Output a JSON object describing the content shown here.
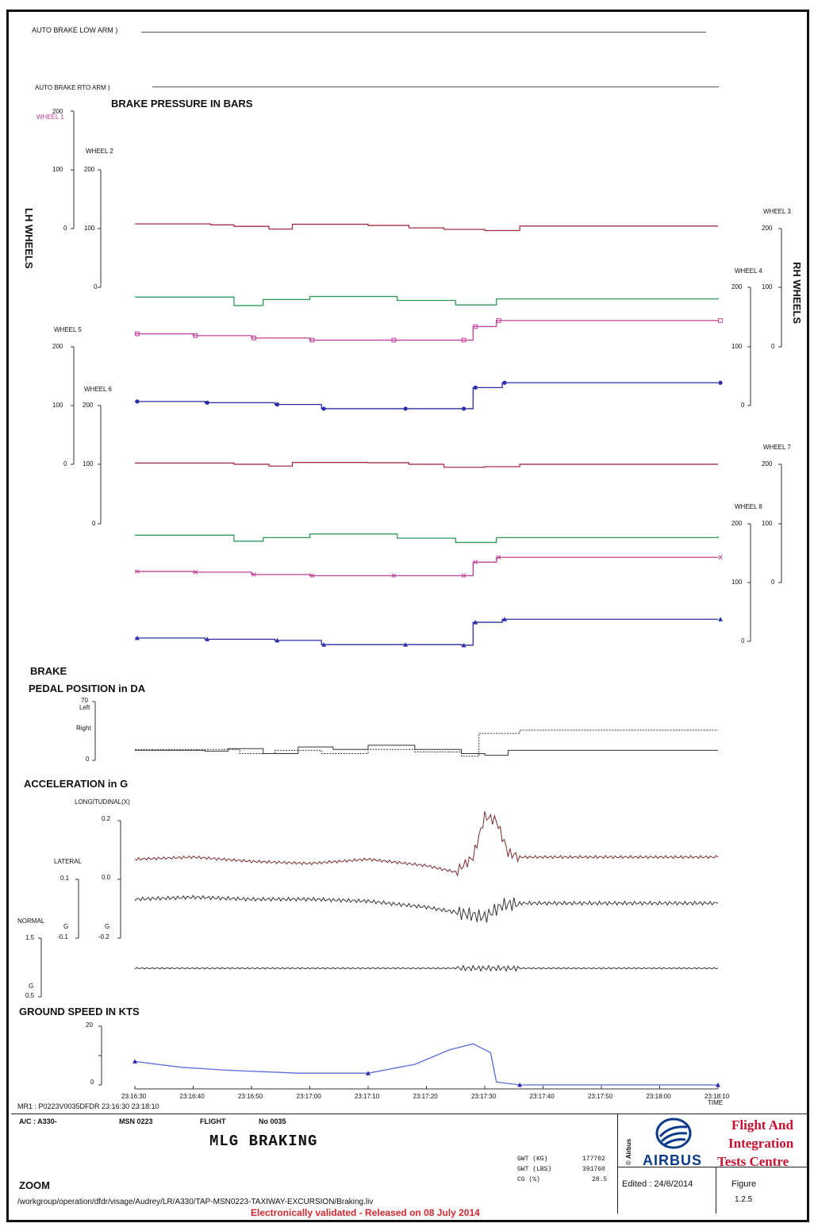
{
  "header": {
    "auto_brake_low": "AUTO BRAKE LOW ARM )",
    "auto_brake_rto": "AUTO BRAKE RTO ARM )"
  },
  "sections": {
    "brake_pressure": "BRAKE PRESSURE IN BARS",
    "lh_wheels": "LH WHEELS",
    "rh_wheels": "RH WHEELS",
    "pedal_1": "BRAKE",
    "pedal_2": "PEDAL POSITION in DA",
    "acceleration": "ACCELERATION in G",
    "ground_speed": "GROUND SPEED IN KTS"
  },
  "labels": {
    "wheel1": "WHEEL 1",
    "wheel2": "WHEEL 2",
    "wheel3": "WHEEL 3",
    "wheel4": "WHEEL 4",
    "wheel5": "WHEEL 5",
    "wheel6": "WHEEL 6",
    "wheel7": "WHEEL 7",
    "wheel8": "WHEEL 8",
    "left": "Left",
    "right": "Right",
    "longitudinal": "LONGITUDINAL(X)",
    "lateral": "LATERAL",
    "normal": "NORMAL",
    "g": "G",
    "time": "TIME"
  },
  "ticks": {
    "t200": "200",
    "t100": "100",
    "t0": "0",
    "t70": "70",
    "a02": "0.2",
    "a00": "0.0",
    "am02": "-0.2",
    "l01": "0.1",
    "lm01": "-0.1",
    "n15": "1.5",
    "n05": "0.5",
    "s20": "20",
    "s0": "0"
  },
  "colors": {
    "wheel_a": "#a0304a",
    "wheel_b": "#2f9a5a",
    "wheel_c": "#c0409a",
    "wheel_d": "#2c2ca8",
    "accel_long": "#7a2a2a",
    "trace": "#333333",
    "speed": "#5a6adc",
    "airbus_blue": "#0b3a8a",
    "fitc_red": "#c8102e",
    "validated_red": "#d4282e"
  },
  "chart_data": {
    "type": "line",
    "x_ticks": [
      "23:16:30",
      "23:16:40",
      "23:16:50",
      "23:17:00",
      "23:17:10",
      "23:17:20",
      "23:17:30",
      "23:17:40",
      "23:17:50",
      "23:18:00",
      "23:18:10"
    ],
    "x_range": [
      "23:16:30",
      "23:18:10"
    ],
    "brake_pressure_bars": {
      "ylim": [
        0,
        200
      ],
      "series": [
        {
          "name": "WHEEL 1",
          "values": [
            [
              0,
              68
            ],
            [
              13,
              65
            ],
            [
              17,
              60
            ],
            [
              23,
              51
            ],
            [
              27,
              67
            ],
            [
              40,
              63
            ],
            [
              47,
              55
            ],
            [
              53,
              50
            ],
            [
              60,
              46
            ],
            [
              66,
              61
            ],
            [
              100,
              61
            ]
          ]
        },
        {
          "name": "WHEEL 2",
          "values": [
            [
              0,
              36
            ],
            [
              17,
              8
            ],
            [
              22,
              28
            ],
            [
              30,
              38
            ],
            [
              45,
              25
            ],
            [
              55,
              10
            ],
            [
              62,
              30
            ],
            [
              100,
              33
            ]
          ]
        },
        {
          "name": "WHEEL 3",
          "values": [
            [
              0,
              88
            ],
            [
              10,
              82
            ],
            [
              20,
              74
            ],
            [
              30,
              67
            ],
            [
              44,
              67
            ],
            [
              56,
              67
            ],
            [
              58,
              112
            ],
            [
              62,
              132
            ],
            [
              100,
              132
            ]
          ]
        },
        {
          "name": "WHEEL 4",
          "values": [
            [
              0,
              32
            ],
            [
              12,
              28
            ],
            [
              24,
              22
            ],
            [
              32,
              8
            ],
            [
              46,
              8
            ],
            [
              56,
              8
            ],
            [
              58,
              78
            ],
            [
              63,
              94
            ],
            [
              100,
              94
            ]
          ]
        },
        {
          "name": "WHEEL 5",
          "values": [
            [
              0,
              62
            ],
            [
              13,
              62
            ],
            [
              17,
              58
            ],
            [
              23,
              52
            ],
            [
              27,
              64
            ],
            [
              40,
              63
            ],
            [
              47,
              58
            ],
            [
              53,
              48
            ],
            [
              60,
              50
            ],
            [
              66,
              58
            ],
            [
              100,
              58
            ]
          ]
        },
        {
          "name": "WHEEL 6",
          "values": [
            [
              0,
              36
            ],
            [
              17,
              16
            ],
            [
              22,
              28
            ],
            [
              30,
              40
            ],
            [
              45,
              26
            ],
            [
              55,
              12
            ],
            [
              62,
              28
            ],
            [
              100,
              33
            ]
          ]
        },
        {
          "name": "WHEEL 7",
          "values": [
            [
              0,
              84
            ],
            [
              10,
              82
            ],
            [
              20,
              74
            ],
            [
              30,
              70
            ],
            [
              44,
              70
            ],
            [
              56,
              70
            ],
            [
              58,
              115
            ],
            [
              62,
              131
            ],
            [
              100,
              131
            ]
          ]
        },
        {
          "name": "WHEEL 8",
          "values": [
            [
              0,
              32
            ],
            [
              12,
              28
            ],
            [
              24,
              24
            ],
            [
              32,
              10
            ],
            [
              46,
              10
            ],
            [
              56,
              8
            ],
            [
              58,
              84
            ],
            [
              63,
              94
            ],
            [
              100,
              94
            ]
          ]
        }
      ]
    },
    "pedal_position_da": {
      "ylim": [
        0,
        70
      ],
      "series": [
        {
          "name": "Left",
          "values": [
            [
              0,
              12
            ],
            [
              12,
              11
            ],
            [
              16,
              14
            ],
            [
              22,
              8
            ],
            [
              28,
              16
            ],
            [
              34,
              13
            ],
            [
              40,
              18
            ],
            [
              48,
              13
            ],
            [
              56,
              8
            ],
            [
              60,
              6
            ],
            [
              64,
              12
            ],
            [
              100,
              12
            ]
          ]
        },
        {
          "name": "Right",
          "values": [
            [
              0,
              13
            ],
            [
              12,
              13
            ],
            [
              18,
              8
            ],
            [
              24,
              12
            ],
            [
              32,
              8
            ],
            [
              40,
              13
            ],
            [
              48,
              10
            ],
            [
              56,
              5
            ],
            [
              59,
              32
            ],
            [
              66,
              36
            ],
            [
              100,
              36
            ]
          ]
        }
      ]
    },
    "acceleration_g": {
      "series": [
        {
          "name": "LONGITUDINAL(X)",
          "ylim": [
            -0.2,
            0.2
          ],
          "values": [
            [
              0,
              0.02
            ],
            [
              10,
              0.03
            ],
            [
              20,
              0.01
            ],
            [
              30,
              0.0
            ],
            [
              40,
              0.02
            ],
            [
              50,
              -0.01
            ],
            [
              55,
              -0.04
            ],
            [
              58,
              0.03
            ],
            [
              60,
              0.22
            ],
            [
              62,
              0.2
            ],
            [
              64,
              0.05
            ],
            [
              66,
              0.03
            ],
            [
              100,
              0.03
            ]
          ]
        },
        {
          "name": "LATERAL",
          "ylim": [
            -0.1,
            0.1
          ],
          "values": [
            [
              0,
              0.0
            ],
            [
              10,
              0.01
            ],
            [
              20,
              0.0
            ],
            [
              30,
              0.0
            ],
            [
              40,
              -0.01
            ],
            [
              50,
              -0.04
            ],
            [
              56,
              -0.07
            ],
            [
              60,
              -0.09
            ],
            [
              63,
              -0.03
            ],
            [
              66,
              -0.02
            ],
            [
              100,
              -0.02
            ]
          ]
        },
        {
          "name": "NORMAL",
          "ylim": [
            0.5,
            1.5
          ],
          "values": [
            [
              0,
              1.0
            ],
            [
              50,
              1.0
            ],
            [
              56,
              1.0
            ],
            [
              60,
              1.0
            ],
            [
              66,
              1.0
            ],
            [
              100,
              1.0
            ]
          ]
        }
      ]
    },
    "ground_speed_kts": {
      "ylim": [
        0,
        20
      ],
      "series": [
        {
          "name": "GROUND SPEED",
          "values": [
            [
              0,
              8
            ],
            [
              8,
              6
            ],
            [
              16,
              5
            ],
            [
              28,
              4
            ],
            [
              40,
              4
            ],
            [
              48,
              7
            ],
            [
              54,
              12
            ],
            [
              58,
              14
            ],
            [
              61,
              11
            ],
            [
              62,
              1
            ],
            [
              66,
              0
            ],
            [
              100,
              0
            ]
          ]
        }
      ]
    }
  },
  "footer": {
    "mr1": "MR1 : P0223V0035DFDR 23:16:30 23:18:10",
    "ac": "A/C : A330-",
    "msn": "MSN 0223",
    "flight": "FLIGHT",
    "no": "No 0035",
    "title": "MLG BRAKING",
    "zoom": "ZOOM",
    "gwt_kg_label": "GWT (KG)",
    "gwt_kg": "177702",
    "gwt_lbs_label": "GWT (LBS)",
    "gwt_lbs": "391760",
    "cg_label": "CG (%)",
    "cg": "28.5",
    "airbus_copyright": "© Airbus",
    "airbus_word": "AIRBUS",
    "edited": "Edited : 24/6/2014",
    "fitc_line1": "Flight And",
    "fitc_line2": "Integration",
    "fitc_line3": "Tests Centre",
    "figure_label": "Figure",
    "figure_no": "1.2.5",
    "path": "/workgroup/operation/dfdr/visage/Audrey/LR/A330/TAP-MSN0223-TAXIWAY-EXCURSION/Braking.liv",
    "validated": "Electronically validated - Released on 08 July 2014"
  }
}
